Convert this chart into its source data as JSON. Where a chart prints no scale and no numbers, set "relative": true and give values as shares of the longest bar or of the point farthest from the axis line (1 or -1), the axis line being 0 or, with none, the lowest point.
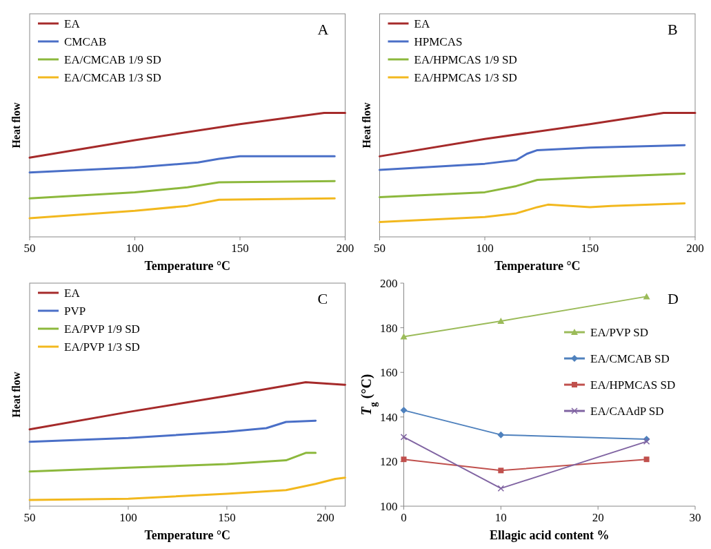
{
  "chart_data": [
    {
      "type": "line",
      "relative": true,
      "xlabel": "Temperature °C",
      "ylabel": "Heat flow",
      "xlim": [
        50,
        200
      ],
      "xticks": [
        50,
        100,
        150,
        200
      ],
      "legend": "top left",
      "annotations": [
        "A"
      ],
      "series": [
        {
          "name": "EA",
          "color": "#a52a2a",
          "x": [
            50,
            100,
            150,
            190,
            200
          ],
          "values": [
            0.64,
            0.78,
            0.91,
            1,
            1
          ]
        },
        {
          "name": "CMCAB",
          "color": "#4a6fc7",
          "x": [
            50,
            100,
            130,
            140,
            150,
            195
          ],
          "values": [
            0.52,
            0.56,
            0.6,
            0.63,
            0.65,
            0.65
          ]
        },
        {
          "name": "EA/CMCAB 1/9 SD",
          "color": "#8cb83c",
          "x": [
            50,
            100,
            125,
            140,
            195
          ],
          "values": [
            0.31,
            0.36,
            0.4,
            0.44,
            0.45
          ]
        },
        {
          "name": "EA/CMCAB 1/3 SD",
          "color": "#f2b81e",
          "x": [
            50,
            100,
            125,
            140,
            195
          ],
          "values": [
            0.15,
            0.21,
            0.25,
            0.3,
            0.31
          ]
        }
      ]
    },
    {
      "type": "line",
      "relative": true,
      "xlabel": "Temperature °C",
      "ylabel": "Heat flow",
      "xlim": [
        50,
        200
      ],
      "xticks": [
        50,
        100,
        150,
        200
      ],
      "legend": "top left",
      "annotations": [
        "B"
      ],
      "series": [
        {
          "name": "EA",
          "color": "#a52a2a",
          "x": [
            50,
            100,
            150,
            185,
            200
          ],
          "values": [
            0.65,
            0.79,
            0.91,
            1,
            1
          ]
        },
        {
          "name": "HPMCAS",
          "color": "#4a6fc7",
          "x": [
            50,
            100,
            115,
            120,
            125,
            150,
            195
          ],
          "values": [
            0.54,
            0.59,
            0.62,
            0.67,
            0.7,
            0.72,
            0.74
          ]
        },
        {
          "name": "EA/HPMCAS 1/9 SD",
          "color": "#8cb83c",
          "x": [
            50,
            100,
            115,
            125,
            150,
            195
          ],
          "values": [
            0.32,
            0.36,
            0.41,
            0.46,
            0.48,
            0.51
          ]
        },
        {
          "name": "EA/HPMCAS 1/3 SD",
          "color": "#f2b81e",
          "x": [
            50,
            100,
            115,
            125,
            130,
            150,
            160,
            195
          ],
          "values": [
            0.12,
            0.16,
            0.19,
            0.24,
            0.26,
            0.24,
            0.25,
            0.27
          ]
        }
      ]
    },
    {
      "type": "line",
      "relative": true,
      "xlabel": "Temperature °C",
      "ylabel": "Heat flow",
      "xlim": [
        50,
        210
      ],
      "xticks": [
        50,
        100,
        150,
        200
      ],
      "legend": "top left",
      "annotations": [
        "C"
      ],
      "series": [
        {
          "name": "EA",
          "color": "#a52a2a",
          "x": [
            50,
            100,
            150,
            190,
            210
          ],
          "values": [
            0.62,
            0.76,
            0.89,
            1,
            0.98
          ]
        },
        {
          "name": "PVP",
          "color": "#4a6fc7",
          "x": [
            50,
            100,
            150,
            170,
            180,
            195
          ],
          "values": [
            0.52,
            0.55,
            0.6,
            0.63,
            0.68,
            0.69
          ]
        },
        {
          "name": "EA/PVP 1/9 SD",
          "color": "#8cb83c",
          "x": [
            50,
            100,
            150,
            180,
            190,
            195
          ],
          "values": [
            0.28,
            0.31,
            0.34,
            0.37,
            0.43,
            0.43
          ]
        },
        {
          "name": "EA/PVP 1/3 SD",
          "color": "#f2b81e",
          "x": [
            50,
            100,
            150,
            180,
            195,
            205,
            210
          ],
          "values": [
            0.05,
            0.06,
            0.1,
            0.13,
            0.18,
            0.22,
            0.23
          ]
        }
      ]
    },
    {
      "type": "line",
      "xlabel": "Ellagic acid content %",
      "ylabel": "T$_{g}$ (°C)",
      "xlim": [
        0,
        30
      ],
      "xticks": [
        0,
        10,
        20,
        30
      ],
      "ylim": [
        100,
        200
      ],
      "yticks": [
        100,
        120,
        140,
        160,
        180,
        200
      ],
      "legend": "right",
      "annotations": [
        "D"
      ],
      "x": [
        0,
        10,
        25
      ],
      "series": [
        {
          "name": "EA/PVP SD",
          "color": "#9bbb59",
          "marker": "triangle",
          "values": [
            176,
            183,
            194
          ]
        },
        {
          "name": "EA/CMCAB SD",
          "color": "#4f81bd",
          "marker": "diamond",
          "values": [
            143,
            132,
            130
          ]
        },
        {
          "name": "EA/HPMCAS SD",
          "color": "#c0504d",
          "marker": "square",
          "values": [
            121,
            116,
            121
          ]
        },
        {
          "name": "EA/CAAdP SD",
          "color": "#8064a2",
          "marker": "cross",
          "values": [
            131,
            108,
            129
          ]
        }
      ]
    }
  ]
}
